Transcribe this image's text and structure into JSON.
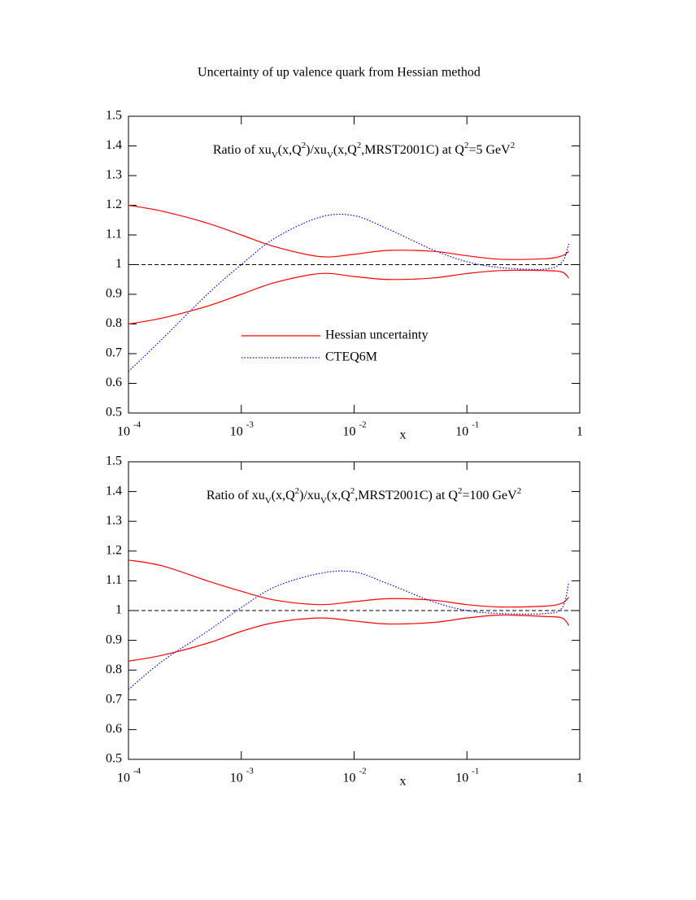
{
  "title": "Uncertainty of up valence quark from Hessian method",
  "chart_data": [
    {
      "type": "line",
      "log_x": true,
      "annotation": [
        {
          "text": "Ratio of xu"
        },
        {
          "text": "V",
          "shift": "sub"
        },
        {
          "text": "(x,Q"
        },
        {
          "text": "2",
          "shift": "super"
        },
        {
          "text": ")/xu"
        },
        {
          "text": "V",
          "shift": "sub"
        },
        {
          "text": "(x,Q"
        },
        {
          "text": "2",
          "shift": "super"
        },
        {
          "text": ",MRST2001C) at Q"
        },
        {
          "text": "2",
          "shift": "super"
        },
        {
          "text": "=5 GeV"
        },
        {
          "text": "2",
          "shift": "super"
        }
      ],
      "x_label": "x",
      "x": [
        0.0001,
        0.0002,
        0.0005,
        0.001,
        0.002,
        0.005,
        0.01,
        0.02,
        0.05,
        0.1,
        0.2,
        0.5,
        0.7,
        0.8
      ],
      "series": [
        {
          "name": "Hessian uncertainty",
          "color": "#ff0000",
          "dash": "solid",
          "upper": [
            1.2,
            1.18,
            1.14,
            1.1,
            1.06,
            1.027,
            1.035,
            1.048,
            1.045,
            1.03,
            1.018,
            1.02,
            1.03,
            1.045
          ],
          "lower": [
            0.8,
            0.82,
            0.86,
            0.9,
            0.94,
            0.97,
            0.96,
            0.95,
            0.955,
            0.97,
            0.98,
            0.98,
            0.975,
            0.955
          ]
        },
        {
          "name": "CTEQ6M",
          "color": "#0000ff",
          "dash": "dotted",
          "values": [
            0.64,
            0.75,
            0.9,
            1.0,
            1.09,
            1.16,
            1.165,
            1.12,
            1.05,
            1.01,
            0.99,
            0.985,
            1.01,
            1.07
          ]
        }
      ],
      "reference_line": 1,
      "legend": "center",
      "xlim": [
        0.0001,
        1
      ],
      "xticks": [
        {
          "value": 0.0001,
          "label": "10",
          "exponent": "-4"
        },
        {
          "value": 0.001,
          "label": "10",
          "exponent": "-3"
        },
        {
          "value": 0.01,
          "label": "10",
          "exponent": "-2"
        },
        {
          "value": 0.1,
          "label": "10",
          "exponent": "-1"
        },
        1
      ],
      "ylim": [
        0.5,
        1.5
      ],
      "yticks": [
        0.5,
        0.6,
        0.7,
        0.8,
        0.9,
        1,
        1.1,
        1.2,
        1.3,
        1.4,
        1.5
      ]
    },
    {
      "type": "line",
      "log_x": true,
      "annotation": [
        {
          "text": "Ratio of xu"
        },
        {
          "text": "V",
          "shift": "sub"
        },
        {
          "text": "(x,Q"
        },
        {
          "text": "2",
          "shift": "super"
        },
        {
          "text": ")/xu"
        },
        {
          "text": "V",
          "shift": "sub"
        },
        {
          "text": "(x,Q"
        },
        {
          "text": "2",
          "shift": "super"
        },
        {
          "text": ",MRST2001C) at Q"
        },
        {
          "text": "2",
          "shift": "super"
        },
        {
          "text": "=100 GeV"
        },
        {
          "text": "2",
          "shift": "super"
        }
      ],
      "x_label": "x",
      "x": [
        0.0001,
        0.0002,
        0.0005,
        0.001,
        0.002,
        0.005,
        0.01,
        0.02,
        0.05,
        0.1,
        0.2,
        0.5,
        0.7,
        0.8
      ],
      "series": [
        {
          "color": "#ff0000",
          "dash": "solid",
          "upper": [
            1.17,
            1.15,
            1.1,
            1.065,
            1.035,
            1.02,
            1.03,
            1.04,
            1.035,
            1.02,
            1.012,
            1.015,
            1.025,
            1.045
          ],
          "lower": [
            0.83,
            0.85,
            0.89,
            0.93,
            0.96,
            0.975,
            0.965,
            0.955,
            0.96,
            0.975,
            0.985,
            0.98,
            0.975,
            0.95
          ]
        },
        {
          "color": "#0000ff",
          "dash": "dotted",
          "values": [
            0.735,
            0.83,
            0.93,
            1.01,
            1.08,
            1.125,
            1.13,
            1.09,
            1.03,
            1.0,
            0.99,
            0.99,
            1.01,
            1.095
          ]
        }
      ],
      "reference_line": 1,
      "xlim": [
        0.0001,
        1
      ],
      "xticks": [
        {
          "value": 0.0001,
          "label": "10",
          "exponent": "-4"
        },
        {
          "value": 0.001,
          "label": "10",
          "exponent": "-3"
        },
        {
          "value": 0.01,
          "label": "10",
          "exponent": "-2"
        },
        {
          "value": 0.1,
          "label": "10",
          "exponent": "-1"
        },
        1
      ],
      "ylim": [
        0.5,
        1.5
      ],
      "yticks": [
        0.5,
        0.6,
        0.7,
        0.8,
        0.9,
        1,
        1.1,
        1.2,
        1.3,
        1.4,
        1.5
      ]
    }
  ]
}
